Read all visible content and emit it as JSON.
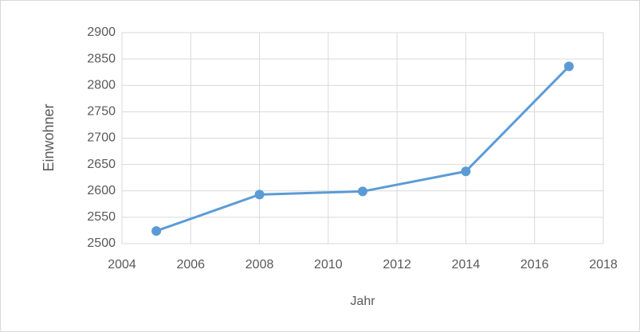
{
  "chart_data": {
    "type": "line",
    "x": [
      2005,
      2008,
      2011,
      2014,
      2017
    ],
    "series": [
      {
        "color": "#5b9bd5",
        "values": [
          2524,
          2593,
          2599,
          2637,
          2836
        ]
      }
    ],
    "xlabel": "Jahr",
    "ylabel": "Einwohner",
    "xlim": [
      2004,
      2018
    ],
    "xticks": [
      2004,
      2006,
      2008,
      2010,
      2012,
      2014,
      2016,
      2018
    ],
    "ylim": [
      2500,
      2900
    ],
    "yticks": [
      2500,
      2550,
      2600,
      2650,
      2700,
      2750,
      2800,
      2850,
      2900
    ],
    "grid": true
  }
}
